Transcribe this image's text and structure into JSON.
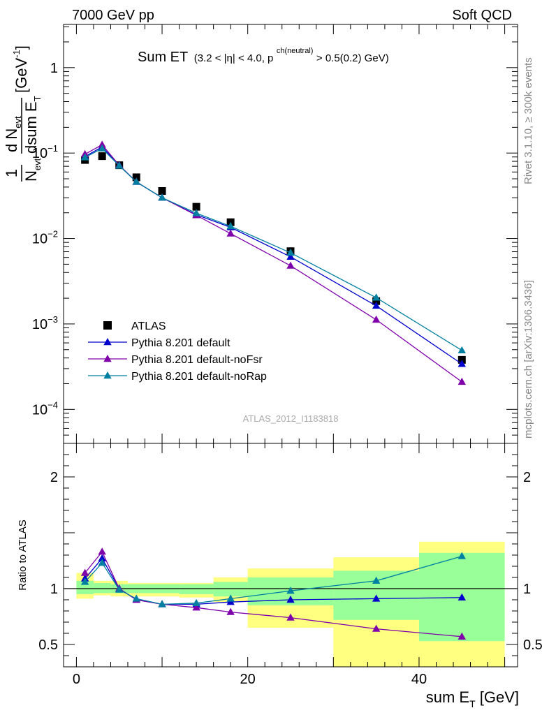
{
  "header": {
    "left": "7000 GeV pp",
    "right": "Soft QCD"
  },
  "side_labels": {
    "rivet": "Rivet 3.1.10, ≥ 300k events",
    "mcplots": "mcplots.cern.ch [arXiv:1306.3436]"
  },
  "chart_data": [
    {
      "type": "scatter",
      "panel": "main",
      "title_main": "Sum ET",
      "title_sub": "(3.2 < |η| < 4.0, p",
      "title_sup": "ch(neutral)",
      "title_end": " > 0.5(0.2) GeV)",
      "watermark": "ATLAS_2012_I1183818",
      "ylabel_frac_num": "1",
      "ylabel_frac_den": "N",
      "ylabel_frac_den_sub": "evt",
      "ylabel_d_num": "d N",
      "ylabel_d_num_sub": "evt",
      "ylabel_d_den": "dsum E",
      "ylabel_d_den_sub": "T",
      "ylabel_unit": "[GeV",
      "ylabel_unit_sup": "-1",
      "ylabel_unit_end": "]",
      "yscale": "log",
      "xlim": [
        -1.5,
        51.5
      ],
      "ylim": [
        4e-05,
        3.2
      ],
      "y_ticks": [
        {
          "value": 1,
          "label": "1"
        },
        {
          "value": 0.1,
          "base": "10",
          "exp": "−1"
        },
        {
          "value": 0.01,
          "base": "10",
          "exp": "−2"
        },
        {
          "value": 0.001,
          "base": "10",
          "exp": "−3"
        },
        {
          "value": 0.0001,
          "base": "10",
          "exp": "−4"
        }
      ],
      "legend_position": "bottom-left",
      "series": [
        {
          "name": "ATLAS",
          "color": "#000000",
          "marker": "square",
          "x": [
            1,
            3,
            5,
            7,
            10,
            14,
            18,
            25,
            35,
            45
          ],
          "y": [
            0.083,
            0.092,
            0.072,
            0.052,
            0.036,
            0.0235,
            0.0155,
            0.0071,
            0.00185,
            0.00038
          ]
        },
        {
          "name": "Pythia 8.201 default",
          "color": "#0000cc",
          "marker": "triangle",
          "x": [
            1,
            3,
            5,
            7,
            10,
            14,
            18,
            25,
            35,
            45
          ],
          "y": [
            0.091,
            0.118,
            0.072,
            0.046,
            0.03,
            0.019,
            0.0135,
            0.0061,
            0.00163,
            0.00034
          ]
        },
        {
          "name": "Pythia 8.201 default-noFsr",
          "color": "#7f00aa",
          "marker": "triangle",
          "x": [
            1,
            3,
            5,
            7,
            10,
            14,
            18,
            25,
            35,
            45
          ],
          "y": [
            0.097,
            0.125,
            0.072,
            0.046,
            0.03,
            0.0187,
            0.0114,
            0.0048,
            0.00112,
            0.00021
          ]
        },
        {
          "name": "Pythia 8.201 default-noRap",
          "color": "#0080a0",
          "marker": "triangle",
          "x": [
            1,
            3,
            5,
            7,
            10,
            14,
            18,
            25,
            35,
            45
          ],
          "y": [
            0.089,
            0.113,
            0.071,
            0.046,
            0.03,
            0.0198,
            0.0139,
            0.0068,
            0.00203,
            0.00049
          ]
        }
      ]
    },
    {
      "type": "line",
      "panel": "ratio",
      "ylabel": "Ratio to ATLAS",
      "xlabel_main": "sum E",
      "xlabel_sub": "T",
      "xlabel_unit": " [GeV]",
      "xlim": [
        -1.5,
        51.5
      ],
      "ylim": [
        0.3,
        2.3
      ],
      "x_ticks": [
        0,
        20,
        40
      ],
      "y_ticks": [
        {
          "value": 0.5,
          "label": "0.5"
        },
        {
          "value": 1,
          "label": "1"
        },
        {
          "value": 2,
          "label": "2"
        }
      ],
      "bands": {
        "outer_color": "#ffff80",
        "inner_color": "#99ff99",
        "bins": [
          {
            "x0": 0,
            "x1": 2,
            "outer": [
              0.91,
              1.14
            ],
            "inner": [
              0.95,
              1.07
            ]
          },
          {
            "x0": 2,
            "x1": 4,
            "outer": [
              0.94,
              1.07
            ],
            "inner": [
              0.96,
              1.05
            ]
          },
          {
            "x0": 4,
            "x1": 6,
            "outer": [
              0.93,
              1.07
            ],
            "inner": [
              0.96,
              1.04
            ]
          },
          {
            "x0": 6,
            "x1": 8,
            "outer": [
              0.93,
              1.05
            ],
            "inner": [
              0.96,
              1.04
            ]
          },
          {
            "x0": 8,
            "x1": 12,
            "outer": [
              0.93,
              1.05
            ],
            "inner": [
              0.96,
              1.04
            ]
          },
          {
            "x0": 12,
            "x1": 16,
            "outer": [
              0.92,
              1.05
            ],
            "inner": [
              0.95,
              1.04
            ]
          },
          {
            "x0": 16,
            "x1": 20,
            "outer": [
              0.88,
              1.1
            ],
            "inner": [
              0.93,
              1.06
            ]
          },
          {
            "x0": 20,
            "x1": 30,
            "outer": [
              0.65,
              1.18
            ],
            "inner": [
              0.85,
              1.1
            ]
          },
          {
            "x0": 30,
            "x1": 40,
            "outer": [
              0.3,
              1.28
            ],
            "inner": [
              0.72,
              1.16
            ]
          },
          {
            "x0": 40,
            "x1": 50,
            "outer": [
              0.3,
              1.42
            ],
            "inner": [
              0.53,
              1.32
            ]
          }
        ]
      },
      "reference_line": 1,
      "series": [
        {
          "name": "Pythia 8.201 default",
          "color": "#0000cc",
          "x": [
            1,
            3,
            5,
            7,
            10,
            14,
            18,
            25,
            35,
            45
          ],
          "y": [
            1.09,
            1.27,
            1.0,
            0.9,
            0.86,
            0.86,
            0.88,
            0.9,
            0.91,
            0.92
          ],
          "err": [
            0.02,
            0.02,
            0.01,
            0.01,
            0.01,
            0.01,
            0.01,
            0.01,
            0.012,
            0.02
          ]
        },
        {
          "name": "Pythia 8.201 default-noFsr",
          "color": "#7f00aa",
          "x": [
            1,
            3,
            5,
            7,
            10,
            14,
            18,
            25,
            35,
            45
          ],
          "y": [
            1.14,
            1.33,
            1.0,
            0.9,
            0.86,
            0.83,
            0.79,
            0.74,
            0.64,
            0.57
          ],
          "err": [
            0.02,
            0.02,
            0.01,
            0.01,
            0.01,
            0.01,
            0.01,
            0.01,
            0.012,
            0.03
          ]
        },
        {
          "name": "Pythia 8.201 default-noRap",
          "color": "#0080a0",
          "x": [
            1,
            3,
            5,
            7,
            10,
            14,
            18,
            25,
            35,
            45
          ],
          "y": [
            1.06,
            1.23,
            0.99,
            0.91,
            0.86,
            0.87,
            0.91,
            0.98,
            1.07,
            1.29
          ],
          "err": [
            0.02,
            0.02,
            0.01,
            0.01,
            0.01,
            0.01,
            0.01,
            0.01,
            0.012,
            0.02
          ]
        }
      ]
    }
  ]
}
